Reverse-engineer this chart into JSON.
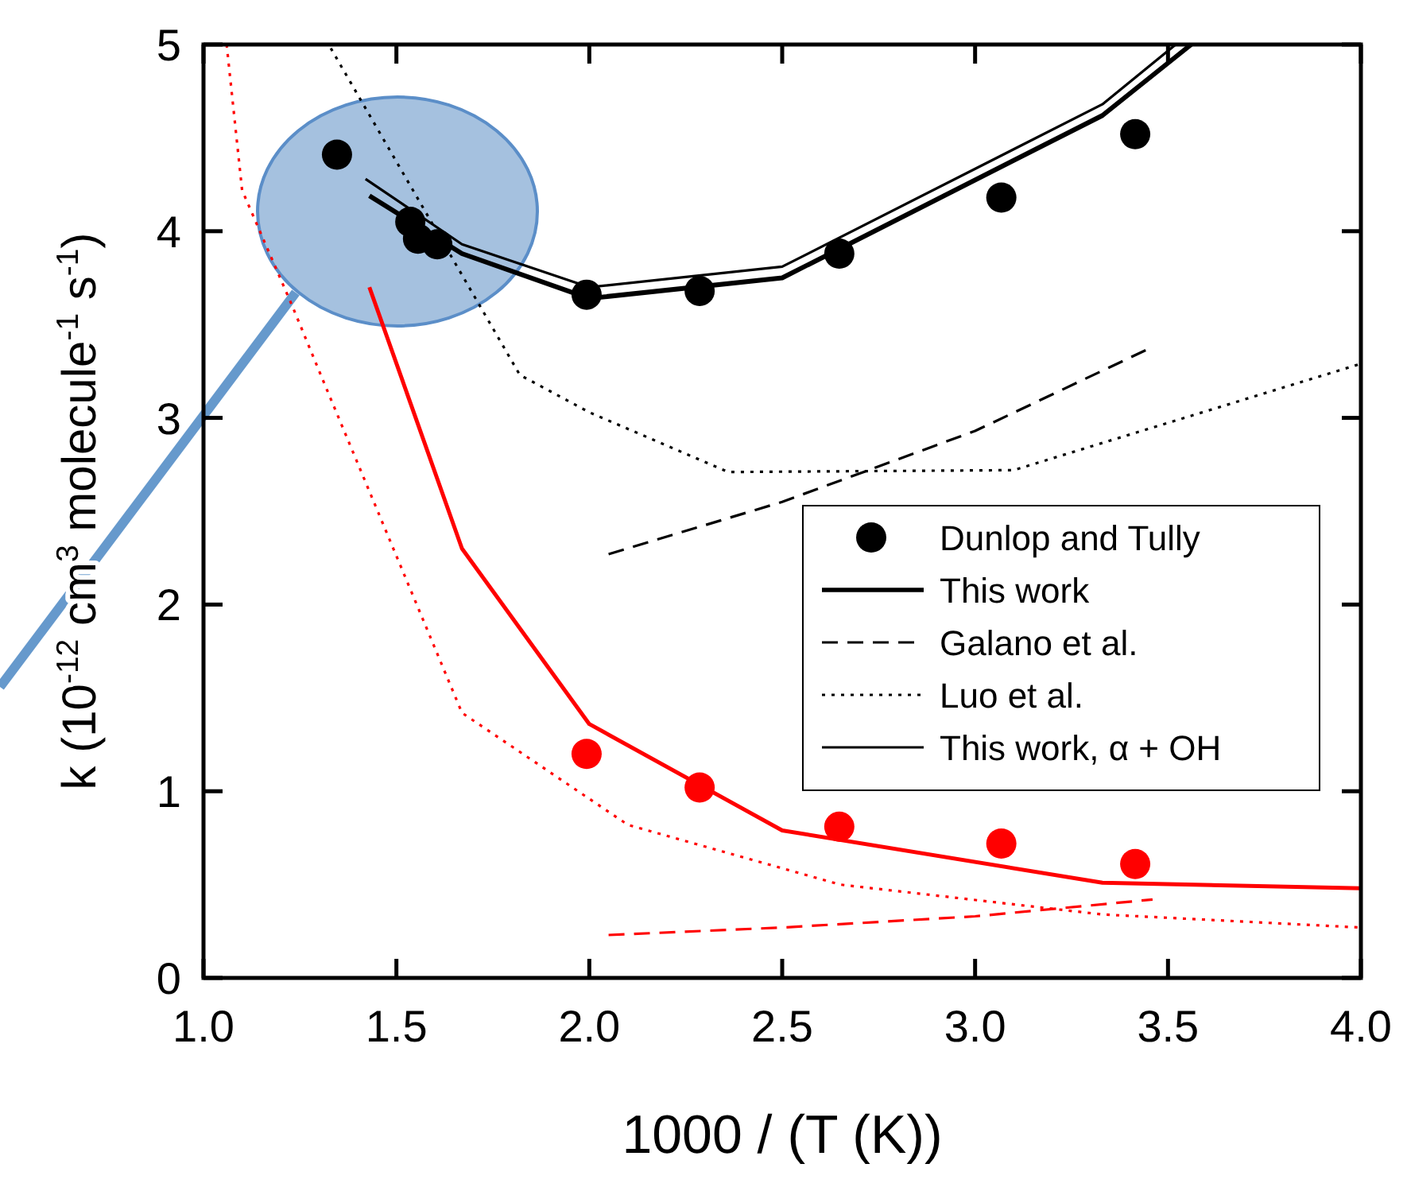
{
  "chart_data": {
    "type": "line",
    "xlabel": "1000 / (T (K))",
    "ylabel": "k (10$^{-12}$ cm$^{3}$ molecule$^{-1}$ s$^{-1}$)",
    "xlim": [
      1.0,
      4.0
    ],
    "ylim": [
      0,
      5
    ],
    "xticks": [
      {
        "value": 1,
        "label": "1.0"
      },
      {
        "value": 1.5,
        "label": "1.5"
      },
      {
        "value": 2,
        "label": "2.0"
      },
      {
        "value": 2.5,
        "label": "2.5"
      },
      {
        "value": 3,
        "label": "3.0"
      },
      {
        "value": 3.5,
        "label": "3.5"
      },
      {
        "value": 4,
        "label": "4.0"
      }
    ],
    "yticks": [
      0,
      1,
      2,
      3,
      4,
      5
    ],
    "grid": false,
    "legend": "right",
    "series": [
      {
        "name": "Dunlop and Tully",
        "type": "scatter",
        "marker": "circle",
        "color": "#000000",
        "x": [
          1.346,
          1.536,
          1.556,
          1.606,
          1.993,
          2.286,
          2.648,
          3.068,
          3.415
        ],
        "values": [
          4.41,
          4.05,
          3.96,
          3.93,
          3.66,
          3.68,
          3.88,
          4.18,
          4.52
        ]
      },
      {
        "name": "This work",
        "type": "line",
        "line_style": "solid",
        "color": "#000000",
        "x": [
          1.43,
          1.67,
          2.0,
          2.5,
          3.33,
          3.56
        ],
        "values": [
          4.19,
          3.88,
          3.64,
          3.75,
          4.62,
          5.0
        ]
      },
      {
        "name": "Galano et al.",
        "type": "line",
        "line_style": "dashed",
        "color": "#000000",
        "x": [
          2.05,
          2.5,
          3.0,
          3.46
        ],
        "values": [
          2.27,
          2.55,
          2.93,
          3.38
        ]
      },
      {
        "name": "Luo et al.",
        "type": "line",
        "line_style": "dotted",
        "color": "#000000",
        "x": [
          1.33,
          1.82,
          2.0,
          2.36,
          3.1,
          4.0
        ],
        "values": [
          4.98,
          3.23,
          3.03,
          2.71,
          2.72,
          3.29
        ]
      },
      {
        "name": "This work, α + OH",
        "type": "line",
        "line_style": "solid",
        "color": "#000000",
        "x": [
          1.42,
          1.67,
          2.0,
          2.5,
          3.33,
          3.52
        ],
        "values": [
          4.28,
          3.93,
          3.7,
          3.81,
          4.68,
          5.0
        ]
      },
      {
        "type": "scatter",
        "marker": "circle",
        "color": "#ff0000",
        "x": [
          1.993,
          2.286,
          2.648,
          3.068,
          3.415
        ],
        "values": [
          1.2,
          1.02,
          0.81,
          0.72,
          0.61
        ]
      },
      {
        "type": "line",
        "line_style": "solid",
        "color": "#ff0000",
        "x": [
          1.43,
          1.67,
          2.0,
          2.5,
          3.33,
          4.0
        ],
        "values": [
          3.7,
          2.3,
          1.36,
          0.79,
          0.51,
          0.48
        ]
      },
      {
        "type": "line",
        "line_style": "dashed",
        "color": "#ff0000",
        "x": [
          2.05,
          2.5,
          3.0,
          3.46
        ],
        "values": [
          0.23,
          0.27,
          0.33,
          0.42
        ]
      },
      {
        "type": "line",
        "line_style": "dotted",
        "color": "#ff0000",
        "x": [
          1.06,
          1.1,
          1.23,
          1.31,
          1.67,
          2.1,
          2.65,
          3.33,
          4.0
        ],
        "values": [
          5.0,
          4.22,
          3.6,
          3.2,
          1.42,
          0.82,
          0.5,
          0.34,
          0.27
        ]
      }
    ]
  }
}
